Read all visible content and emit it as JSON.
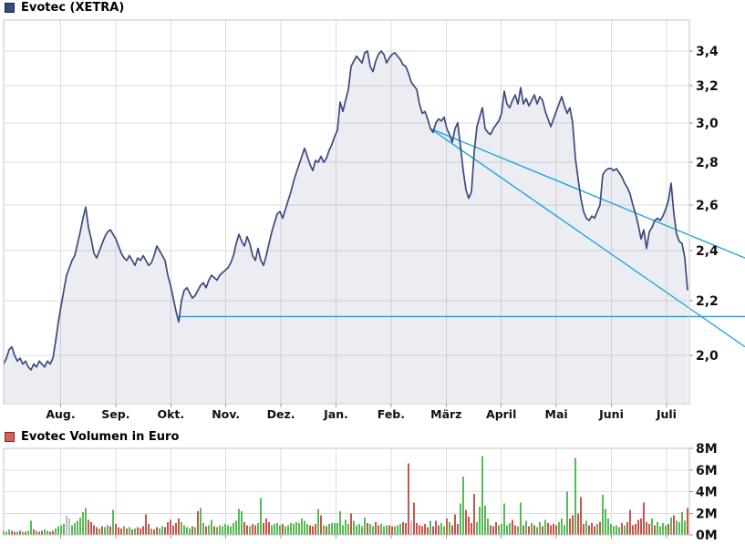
{
  "header": {
    "title": "Evotec (XETRA)",
    "swatch_fill": "#3a497b",
    "swatch_border": "#16224d"
  },
  "volume_header": {
    "title": "Evotec Volumen in Euro",
    "swatch_fill": "#d4625e",
    "swatch_border": "#7e2d28"
  },
  "colors": {
    "price_line": "#3a4b7e",
    "area_fill": "#3a4b7e",
    "trend_line": "#14a3dc",
    "grid": "#dddddd",
    "border": "#c6c6c6",
    "tick": "#999999",
    "label": "#111111",
    "vol_up": "#56ba56",
    "vol_down": "#c8544f",
    "vol_neutral": "#bdbdbd"
  },
  "chart_data": [
    {
      "type": "area",
      "title": "Evotec (XETRA)",
      "x_axis": {
        "months": [
          "Aug.",
          "Sep.",
          "Okt.",
          "Nov.",
          "Dez.",
          "Jan.",
          "Feb.",
          "März",
          "April",
          "Mai",
          "Juni",
          "Juli"
        ]
      },
      "y_axis": {
        "side": "right",
        "scale": "log",
        "tick_labels": [
          "3,4",
          "3,2",
          "3,0",
          "2,8",
          "2,6",
          "2,4",
          "2,2",
          "2,0"
        ],
        "tick_values": [
          3.4,
          3.2,
          3.0,
          2.8,
          2.6,
          2.4,
          2.2,
          2.0
        ],
        "range": [
          1.84,
          3.59
        ]
      },
      "support_line": {
        "price": 2.14,
        "start_index": 64
      },
      "trendlines": [
        {
          "name": "upper-downtrend",
          "start_index": 156,
          "start_price": 2.97,
          "end_price_at_right_edge": 2.37
        },
        {
          "name": "lower-downtrend",
          "start_index": 156,
          "start_price": 2.97,
          "end_price_at_right_edge": 2.03
        }
      ],
      "series": [
        {
          "name": "Evotec close",
          "values": [
            1.97,
            1.99,
            2.02,
            2.03,
            2.0,
            1.98,
            1.99,
            1.97,
            1.98,
            1.96,
            1.95,
            1.97,
            1.96,
            1.98,
            1.97,
            1.96,
            1.98,
            1.97,
            1.99,
            2.05,
            2.12,
            2.18,
            2.24,
            2.3,
            2.33,
            2.36,
            2.38,
            2.43,
            2.48,
            2.54,
            2.59,
            2.5,
            2.45,
            2.39,
            2.37,
            2.4,
            2.43,
            2.46,
            2.48,
            2.49,
            2.47,
            2.45,
            2.42,
            2.39,
            2.37,
            2.36,
            2.38,
            2.36,
            2.34,
            2.37,
            2.36,
            2.38,
            2.36,
            2.34,
            2.35,
            2.38,
            2.42,
            2.4,
            2.38,
            2.36,
            2.3,
            2.26,
            2.21,
            2.16,
            2.12,
            2.2,
            2.24,
            2.25,
            2.23,
            2.21,
            2.22,
            2.24,
            2.26,
            2.27,
            2.25,
            2.28,
            2.3,
            2.29,
            2.28,
            2.3,
            2.31,
            2.32,
            2.33,
            2.35,
            2.38,
            2.43,
            2.47,
            2.44,
            2.42,
            2.46,
            2.43,
            2.38,
            2.36,
            2.41,
            2.36,
            2.34,
            2.38,
            2.43,
            2.48,
            2.52,
            2.56,
            2.57,
            2.54,
            2.58,
            2.62,
            2.66,
            2.71,
            2.75,
            2.79,
            2.83,
            2.87,
            2.83,
            2.79,
            2.76,
            2.81,
            2.8,
            2.83,
            2.8,
            2.82,
            2.86,
            2.89,
            2.93,
            2.96,
            3.11,
            3.06,
            3.12,
            3.18,
            3.31,
            3.34,
            3.37,
            3.35,
            3.33,
            3.39,
            3.4,
            3.31,
            3.28,
            3.34,
            3.38,
            3.4,
            3.38,
            3.33,
            3.36,
            3.38,
            3.39,
            3.37,
            3.35,
            3.32,
            3.31,
            3.27,
            3.22,
            3.2,
            3.18,
            3.1,
            3.05,
            3.06,
            3.02,
            2.97,
            2.95,
            3.0,
            3.02,
            3.01,
            3.03,
            2.97,
            2.94,
            2.9,
            2.97,
            3.0,
            2.88,
            2.76,
            2.67,
            2.63,
            2.66,
            2.85,
            2.98,
            3.03,
            3.08,
            2.97,
            2.95,
            2.94,
            2.97,
            2.99,
            3.01,
            3.05,
            3.17,
            3.1,
            3.08,
            3.12,
            3.15,
            3.1,
            3.19,
            3.1,
            3.13,
            3.09,
            3.12,
            3.15,
            3.1,
            3.14,
            3.12,
            3.06,
            3.02,
            2.98,
            3.02,
            3.06,
            3.1,
            3.14,
            3.09,
            3.05,
            3.08,
            3.0,
            2.82,
            2.72,
            2.63,
            2.57,
            2.54,
            2.53,
            2.55,
            2.54,
            2.57,
            2.6,
            2.74,
            2.76,
            2.77,
            2.77,
            2.76,
            2.77,
            2.75,
            2.73,
            2.7,
            2.68,
            2.65,
            2.6,
            2.56,
            2.51,
            2.45,
            2.49,
            2.41,
            2.48,
            2.5,
            2.53,
            2.54,
            2.53,
            2.55,
            2.58,
            2.62,
            2.7,
            2.56,
            2.47,
            2.44,
            2.43,
            2.37,
            2.24
          ]
        }
      ]
    },
    {
      "type": "bar",
      "title": "Evotec Volumen in Euro",
      "y_axis": {
        "side": "right",
        "scale": "linear",
        "tick_labels": [
          "8M",
          "6M",
          "4M",
          "2M",
          "0M"
        ],
        "tick_values": [
          8,
          6,
          4,
          2,
          0
        ],
        "range": [
          0,
          8
        ],
        "unit": "M EUR"
      },
      "values": [
        0.4,
        0.3,
        0.5,
        0.4,
        0.3,
        0.3,
        0.4,
        0.3,
        0.3,
        0.4,
        1.3,
        0.5,
        0.4,
        0.3,
        0.4,
        0.5,
        0.4,
        0.3,
        0.4,
        0.6,
        0.8,
        0.9,
        1.0,
        1.8,
        1.5,
        0.9,
        1.1,
        1.3,
        1.6,
        2.1,
        2.5,
        1.4,
        1.2,
        0.9,
        0.7,
        0.6,
        0.8,
        0.7,
        0.9,
        0.8,
        2.3,
        1.0,
        0.7,
        0.6,
        0.8,
        0.6,
        0.7,
        0.5,
        0.6,
        0.7,
        0.6,
        0.8,
        1.9,
        1.0,
        0.6,
        0.5,
        0.7,
        0.6,
        0.8,
        0.7,
        1.2,
        1.4,
        0.9,
        1.1,
        1.5,
        1.2,
        0.9,
        0.7,
        0.6,
        0.8,
        0.7,
        2.2,
        2.5,
        1.1,
        0.8,
        0.9,
        1.4,
        0.8,
        0.7,
        0.9,
        0.8,
        1.0,
        0.9,
        0.8,
        1.1,
        1.3,
        2.4,
        2.2,
        1.2,
        0.9,
        0.8,
        1.0,
        0.9,
        1.1,
        3.4,
        1.1,
        1.5,
        1.2,
        0.9,
        1.0,
        1.1,
        0.9,
        1.0,
        0.8,
        0.9,
        1.1,
        1.0,
        1.2,
        1.1,
        1.5,
        1.3,
        1.0,
        0.9,
        0.8,
        1.0,
        2.4,
        1.8,
        0.9,
        0.8,
        1.0,
        1.1,
        1.1,
        1.1,
        2.2,
        0.9,
        1.4,
        1.0,
        2.0,
        1.3,
        0.9,
        1.0,
        0.8,
        1.6,
        1.1,
        1.0,
        0.8,
        1.2,
        0.9,
        1.0,
        0.8,
        0.9,
        0.9,
        0.8,
        0.8,
        0.9,
        1.0,
        1.2,
        1.1,
        6.6,
        1.3,
        3.0,
        1.1,
        0.9,
        0.8,
        1.0,
        0.7,
        1.3,
        0.8,
        1.3,
        0.9,
        1.1,
        0.8,
        1.5,
        1.2,
        0.9,
        1.9,
        1.0,
        2.9,
        5.4,
        2.3,
        1.7,
        1.1,
        3.8,
        1.2,
        2.6,
        7.3,
        2.7,
        1.5,
        0.9,
        0.8,
        1.2,
        0.9,
        1.0,
        2.9,
        0.9,
        1.1,
        1.4,
        0.9,
        0.8,
        3.0,
        0.9,
        1.3,
        0.8,
        1.1,
        0.9,
        0.7,
        1.2,
        0.8,
        1.4,
        1.1,
        0.9,
        1.0,
        0.9,
        1.2,
        1.5,
        0.9,
        4.0,
        1.5,
        1.8,
        7.1,
        2.0,
        3.5,
        1.0,
        1.3,
        0.9,
        1.1,
        0.8,
        1.0,
        1.2,
        3.7,
        2.4,
        1.5,
        1.0,
        0.8,
        0.9,
        0.7,
        1.1,
        0.9,
        1.2,
        2.3,
        0.9,
        1.0,
        1.4,
        1.5,
        3.0,
        1.2,
        1.0,
        1.5,
        0.9,
        1.2,
        0.8,
        1.1,
        0.9,
        1.0,
        1.6,
        1.8,
        1.3,
        1.2,
        2.1,
        1.3,
        2.5
      ],
      "bar_colors": "rggrrgrgrggrgrrggrrggggyyggggggrrrrgrggrgrrrgrgrgrrrrrgrrggrrrrrrggggrgrggrggrggggggggggrrgrrggrrrggggrgggggggggrrrgrgrggggggggrgggggrggrrgggrrgggrrryrrrrrrgrrrggrgrrrggrrrrgggggrrrgggggrrggrgrgrggrgrrrrggggrrgrrrgrrrgrgggggggrgrrrrrrrrrgrggggrgrggggrrrr"
    }
  ]
}
